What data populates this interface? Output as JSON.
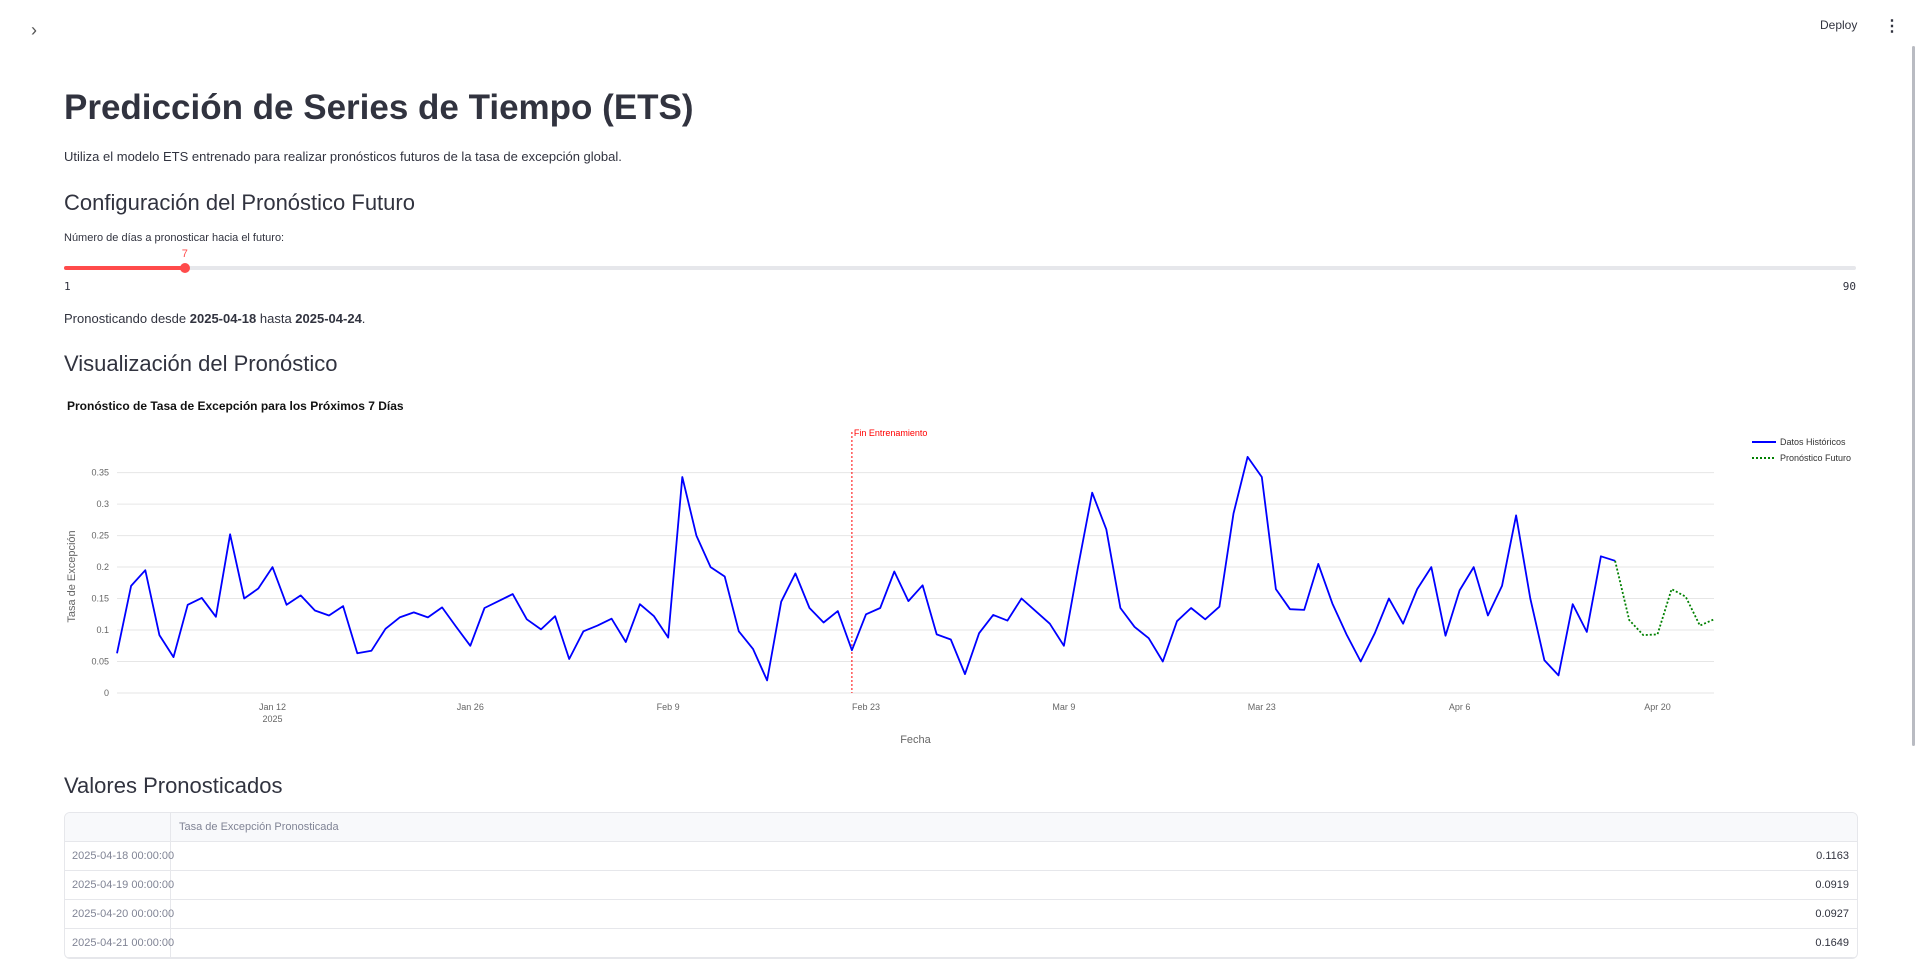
{
  "header": {
    "deploy_label": "Deploy"
  },
  "page": {
    "title": "Predicción de Series de Tiempo (ETS)",
    "description": "Utiliza el modelo ETS entrenado para realizar pronósticos futuros de la tasa de excepción global."
  },
  "config": {
    "heading": "Configuración del Pronóstico Futuro",
    "slider_label": "Número de días a pronosticar hacia el futuro:",
    "slider_value": "7",
    "slider_min": "1",
    "slider_max": "90",
    "range_prefix": "Pronosticando desde ",
    "range_start": "2025-04-18",
    "range_mid": " hasta ",
    "range_end": "2025-04-24",
    "range_suffix": "."
  },
  "viz": {
    "heading": "Visualización del Pronóstico"
  },
  "chart_data": {
    "type": "line",
    "title": "Pronóstico de Tasa de Excepción para los Próximos 7 Días",
    "xlabel": "Fecha",
    "ylabel": "Tasa de Excepción",
    "ylim": [
      0,
      0.37
    ],
    "y_ticks": [
      0,
      0.05,
      0.1,
      0.15,
      0.2,
      0.25,
      0.3,
      0.35
    ],
    "y_tick_labels": [
      "0",
      "0.05",
      "0.1",
      "0.15",
      "0.2",
      "0.25",
      "0.3",
      "0.35"
    ],
    "x_range": [
      "2025-01-01",
      "2025-04-24"
    ],
    "x_ticks": [
      "2025-01-12",
      "2025-01-26",
      "2025-02-09",
      "2025-02-23",
      "2025-03-09",
      "2025-03-23",
      "2025-04-06",
      "2025-04-20"
    ],
    "x_tick_labels": [
      "Jan 12",
      "Jan 26",
      "Feb 9",
      "Feb 23",
      "Mar 9",
      "Mar 23",
      "Apr 6",
      "Apr 20"
    ],
    "x_tick_year": "2025",
    "legend_position": "top-right",
    "grid": true,
    "annotation": {
      "date": "2025-02-22",
      "label": "Fin Entrenamiento",
      "color": "#ff0000"
    },
    "series": [
      {
        "name": "Datos Históricos",
        "color": "#0000ff",
        "style": "solid",
        "start": "2025-01-01",
        "values": [
          0.063,
          0.17,
          0.195,
          0.092,
          0.057,
          0.14,
          0.151,
          0.121,
          0.252,
          0.15,
          0.166,
          0.2,
          0.14,
          0.155,
          0.131,
          0.123,
          0.138,
          0.063,
          0.067,
          0.102,
          0.12,
          0.128,
          0.12,
          0.136,
          0.105,
          0.075,
          0.135,
          0.146,
          0.157,
          0.117,
          0.101,
          0.122,
          0.054,
          0.098,
          0.107,
          0.118,
          0.081,
          0.141,
          0.122,
          0.088,
          0.343,
          0.25,
          0.2,
          0.185,
          0.098,
          0.07,
          0.02,
          0.145,
          0.19,
          0.135,
          0.112,
          0.13,
          0.068,
          0.125,
          0.135,
          0.193,
          0.146,
          0.171,
          0.093,
          0.085,
          0.03,
          0.095,
          0.124,
          0.115,
          0.15,
          0.13,
          0.11,
          0.075,
          0.2,
          0.318,
          0.26,
          0.135,
          0.105,
          0.087,
          0.05,
          0.114,
          0.135,
          0.117,
          0.137,
          0.285,
          0.375,
          0.343,
          0.165,
          0.133,
          0.132,
          0.205,
          0.142,
          0.093,
          0.05,
          0.095,
          0.15,
          0.11,
          0.165,
          0.2,
          0.091,
          0.163,
          0.2,
          0.123,
          0.17,
          0.282,
          0.15,
          0.052,
          0.028,
          0.141,
          0.097,
          0.217,
          0.21
        ]
      },
      {
        "name": "Pronóstico Futuro",
        "color": "#008000",
        "style": "dotted",
        "start": "2025-04-17",
        "values": [
          0.21,
          0.116,
          0.092,
          0.093,
          0.165,
          0.153,
          0.107,
          0.117
        ]
      }
    ]
  },
  "table": {
    "heading": "Valores Pronosticados",
    "index_header": "",
    "value_header": "Tasa de Excepción Pronosticada",
    "rows": [
      {
        "date": "2025-04-18 00:00:00",
        "value": "0.1163"
      },
      {
        "date": "2025-04-19 00:00:00",
        "value": "0.0919"
      },
      {
        "date": "2025-04-20 00:00:00",
        "value": "0.0927"
      },
      {
        "date": "2025-04-21 00:00:00",
        "value": "0.1649"
      }
    ]
  }
}
